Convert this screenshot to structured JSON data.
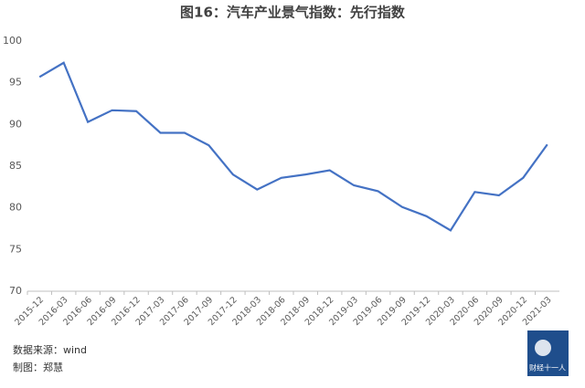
{
  "chart_data": {
    "type": "line",
    "title": "图16：汽车产业景气指数：先行指数",
    "categories": [
      "2015-12",
      "2016-03",
      "2016-06",
      "2016-09",
      "2016-12",
      "2017-03",
      "2017-06",
      "2017-09",
      "2017-12",
      "2018-03",
      "2018-06",
      "2018-09",
      "2018-12",
      "2019-03",
      "2019-06",
      "2019-09",
      "2019-12",
      "2020-03",
      "2020-06",
      "2020-09",
      "2020-12",
      "2021-03"
    ],
    "series": [
      {
        "name": "先行指数",
        "color": "#4472c4",
        "values": [
          95.7,
          97.4,
          90.3,
          91.7,
          91.6,
          89.0,
          89.0,
          87.5,
          84.0,
          82.2,
          83.6,
          84.0,
          84.5,
          82.7,
          82.0,
          80.1,
          79.0,
          77.3,
          81.9,
          81.5,
          83.6,
          87.6
        ]
      }
    ],
    "ylim": [
      70,
      100
    ],
    "yticks": [
      70,
      75,
      80,
      85,
      90,
      95,
      100
    ],
    "grid": false
  },
  "footer": {
    "source": "数据来源：wind",
    "credit": "制图：郑慧",
    "logo": "财经十一人"
  }
}
